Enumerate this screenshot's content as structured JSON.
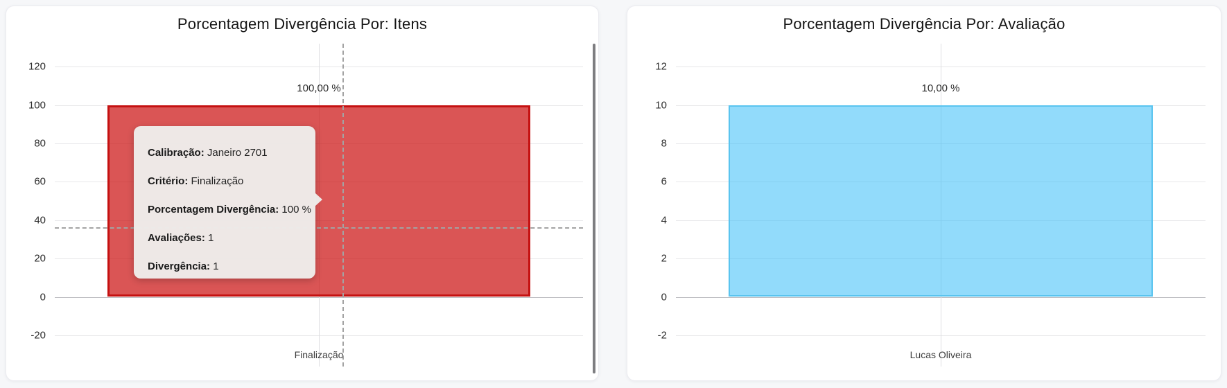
{
  "page": {
    "background": "#f6f7f9"
  },
  "chart_data": [
    {
      "type": "bar",
      "title": "Porcentagem Divergência Por: Itens",
      "categories": [
        "Finalização"
      ],
      "values": [
        100
      ],
      "value_labels": [
        "100,00 %"
      ],
      "yticks": [
        120,
        100,
        80,
        60,
        40,
        20,
        0,
        -20
      ],
      "ylim": [
        -37,
        132
      ],
      "xlabel": "",
      "ylabel": "",
      "grid": true,
      "legend": false,
      "bar_fill": "rgba(204,20,20,0.72)",
      "bar_border": "#c51111",
      "bar_border_width": 3,
      "crosshair": {
        "x_percent": 54.5,
        "y_value": 36.5
      },
      "tooltip": {
        "rows": [
          {
            "label": "Calibração:",
            "value": "Janeiro 2701"
          },
          {
            "label": "Critério:",
            "value": "Finalização"
          },
          {
            "label": "Porcentagem Divergência:",
            "value": "100 %"
          },
          {
            "label": "Avaliações:",
            "value": "1"
          },
          {
            "label": "Divergência:",
            "value": "1"
          }
        ]
      }
    },
    {
      "type": "bar",
      "title": "Porcentagem Divergência Por: Avaliação",
      "categories": [
        "Lucas Oliveira"
      ],
      "values": [
        10
      ],
      "value_labels": [
        "10,00 %"
      ],
      "yticks": [
        12,
        10,
        8,
        6,
        4,
        2,
        0,
        -2
      ],
      "ylim": [
        -3.7,
        13.2
      ],
      "xlabel": "",
      "ylabel": "",
      "grid": true,
      "legend": false,
      "bar_fill": "rgba(56,190,248,0.55)",
      "bar_border": "#5ac4ef",
      "bar_border_width": 2,
      "crosshair": null,
      "tooltip": null
    }
  ]
}
